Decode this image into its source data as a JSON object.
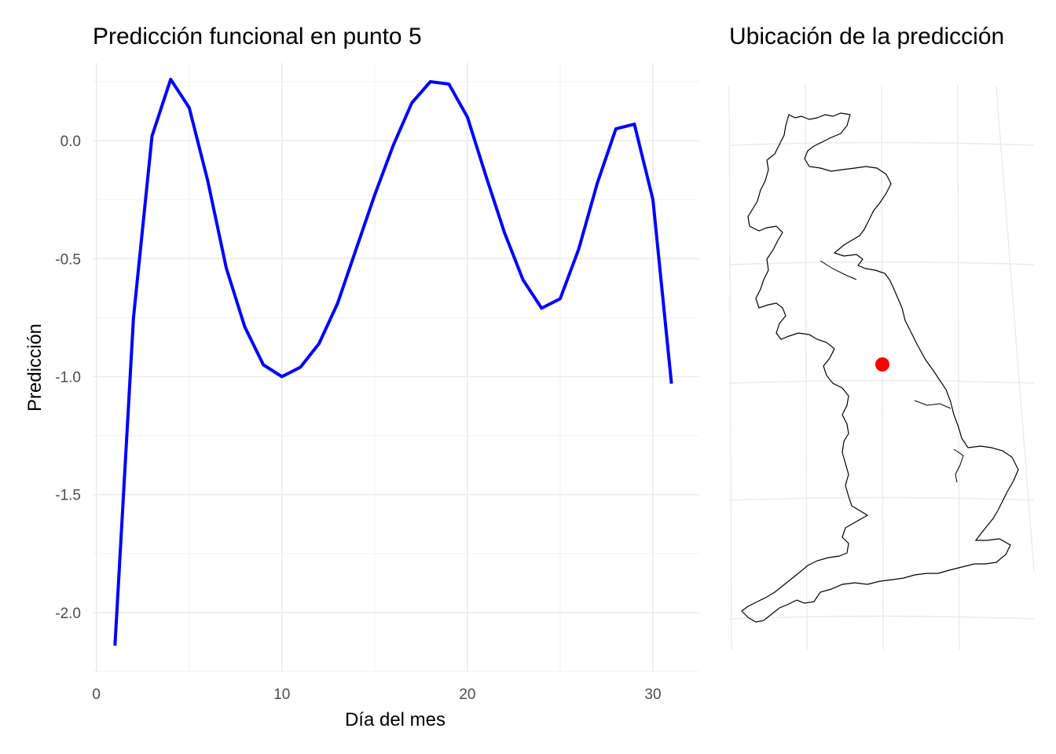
{
  "chart_data": [
    {
      "type": "line",
      "title": "Predicción funcional en punto 5",
      "xlabel": "Día del mes",
      "ylabel": "Predicción",
      "xlim": [
        -0.2,
        32.5
      ],
      "ylim": [
        -2.25,
        0.33
      ],
      "x_ticks": [
        0,
        10,
        20,
        30
      ],
      "x_tick_labels": [
        "0",
        "10",
        "20",
        "30"
      ],
      "y_ticks": [
        0.0,
        -0.5,
        -1.0,
        -1.5,
        -2.0
      ],
      "y_tick_labels": [
        "0.0",
        "-0.5",
        "-1.0",
        "-1.5",
        "-2.0"
      ],
      "grid": true,
      "line_color": "#0000ff",
      "series": [
        {
          "x": [
            1,
            2,
            3,
            4,
            5,
            6,
            7,
            8,
            9,
            10,
            11,
            12,
            13,
            14,
            15,
            16,
            17,
            18,
            19,
            20,
            21,
            22,
            23,
            24,
            25,
            26,
            27,
            28,
            29,
            30,
            31
          ],
          "values": [
            -2.14,
            -0.75,
            0.02,
            0.26,
            0.14,
            -0.17,
            -0.54,
            -0.79,
            -0.95,
            -1.0,
            -0.96,
            -0.86,
            -0.69,
            -0.46,
            -0.23,
            -0.02,
            0.16,
            0.25,
            0.24,
            0.1,
            -0.15,
            -0.39,
            -0.59,
            -0.71,
            -0.67,
            -0.46,
            -0.18,
            0.05,
            0.07,
            -0.25,
            -1.03
          ]
        }
      ]
    },
    {
      "type": "map",
      "title": "Ubicación de la predicción",
      "region": "Great Britain",
      "outline_color": "#000000",
      "marker": {
        "lon": -1.4,
        "lat": 54.0,
        "color": "#ff0000"
      },
      "graticule_lons": [
        -6,
        -4,
        -2,
        0
      ],
      "graticule_lats": [
        50,
        52,
        54,
        56,
        58
      ]
    }
  ]
}
